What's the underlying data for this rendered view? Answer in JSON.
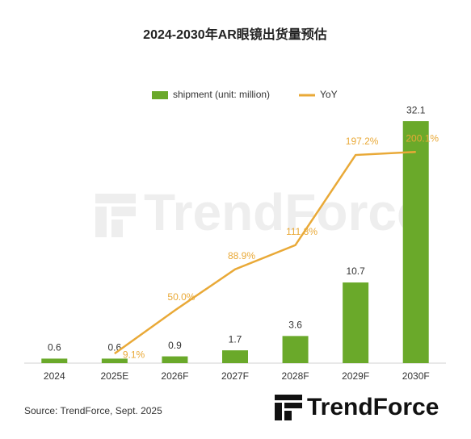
{
  "chart_data": {
    "type": "bar",
    "title": "2024-2030年AR眼镜出货量预估",
    "categories": [
      "2024",
      "2025E",
      "2026F",
      "2027F",
      "2028F",
      "2029F",
      "2030F"
    ],
    "series": [
      {
        "name": "shipment (unit: million)",
        "type": "bar",
        "color": "#6aa92a",
        "values": [
          0.6,
          0.6,
          0.9,
          1.7,
          3.6,
          10.7,
          32.1
        ]
      },
      {
        "name": "YoY",
        "type": "line",
        "axis": "y2",
        "color": "#e9a937",
        "values": [
          null,
          9.1,
          50.0,
          88.9,
          111.8,
          197.2,
          200.1
        ],
        "value_labels": [
          null,
          "9.1%",
          "50.0%",
          "88.9%",
          "111.8%",
          "197.2%",
          "200.1%"
        ]
      }
    ],
    "ylim": [
      0,
      35
    ],
    "y2lim": [
      0,
      250
    ],
    "legend": "top",
    "watermark": "TrendForce",
    "source": "Source: TrendForce, Sept. 2025",
    "logo": "TrendForce"
  }
}
